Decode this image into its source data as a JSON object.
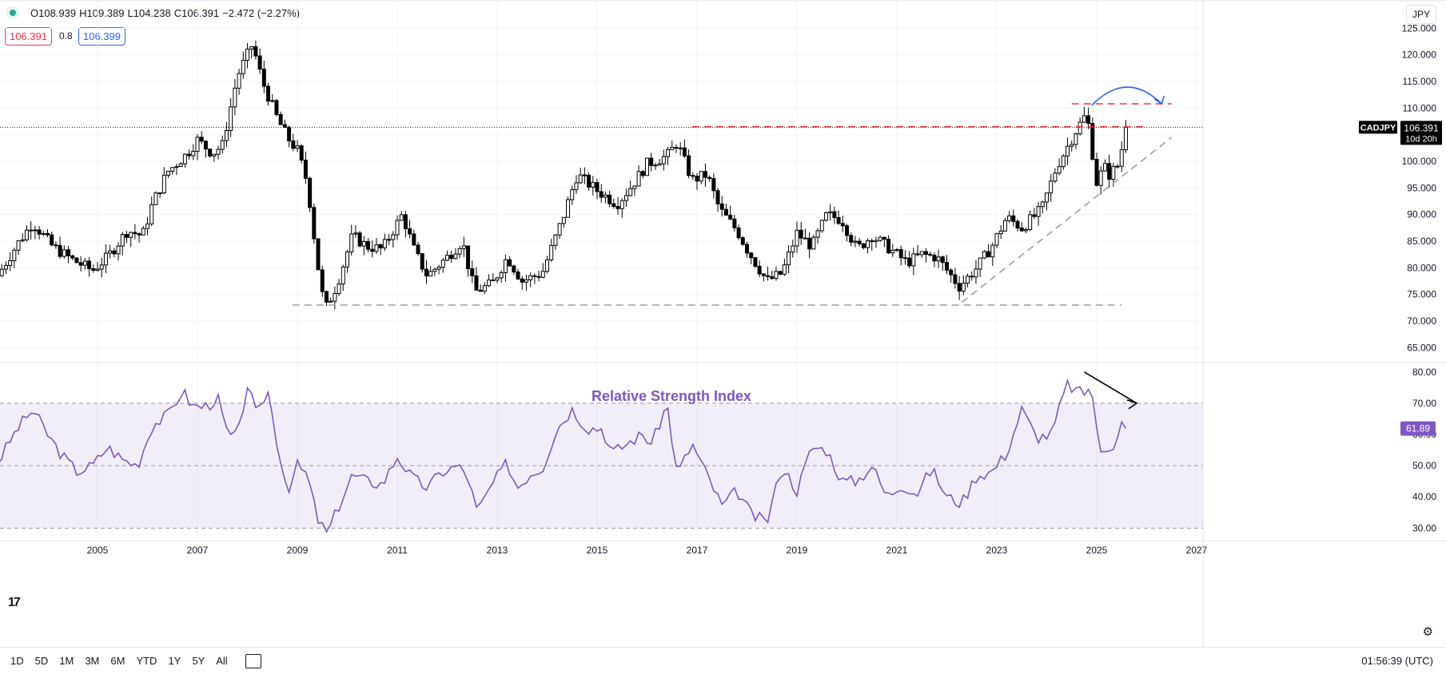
{
  "header": {
    "open": "O108.939",
    "high": "H109.389",
    "low": "L104.238",
    "close": "C106.391",
    "change": "−2.472 (−2.27%)",
    "bid": "106.391",
    "spread": "0.8",
    "ask": "106.399",
    "currency": "JPY"
  },
  "footer": {
    "timeframes": [
      "1D",
      "5D",
      "1M",
      "3M",
      "6M",
      "YTD",
      "1Y",
      "5Y",
      "All"
    ],
    "clock": "01:56:39 (UTC)"
  },
  "chart_data": [
    {
      "type": "candlestick",
      "symbol": "CADJPY",
      "last_price": "106.391",
      "countdown": "10d 20h",
      "x_ticks": [
        "2005",
        "2007",
        "2009",
        "2011",
        "2013",
        "2015",
        "2017",
        "2019",
        "2021",
        "2023",
        "2025",
        "2027"
      ],
      "y_ticks": [
        "125.000",
        "120.000",
        "115.000",
        "110.000",
        "105.000",
        "100.000",
        "95.000",
        "90.000",
        "85.000",
        "80.000",
        "75.000",
        "70.000",
        "65.000"
      ],
      "ylim": [
        62.5,
        128.5
      ],
      "anchors": [
        [
          2003.0,
          78.5
        ],
        [
          2003.4,
          84.5
        ],
        [
          2003.7,
          88.5
        ],
        [
          2004.1,
          84.0
        ],
        [
          2004.5,
          81.5
        ],
        [
          2004.9,
          79.5
        ],
        [
          2005.2,
          82.0
        ],
        [
          2005.6,
          87.0
        ],
        [
          2005.9,
          86.0
        ],
        [
          2006.1,
          92.0
        ],
        [
          2006.4,
          98.0
        ],
        [
          2006.8,
          101.5
        ],
        [
          2007.0,
          104.0
        ],
        [
          2007.3,
          101.5
        ],
        [
          2007.5,
          103.0
        ],
        [
          2007.8,
          116.0
        ],
        [
          2008.1,
          122.0
        ],
        [
          2008.3,
          115.0
        ],
        [
          2008.6,
          108.0
        ],
        [
          2008.8,
          104.5
        ],
        [
          2009.0,
          102.0
        ],
        [
          2009.2,
          96.0
        ],
        [
          2009.4,
          81.0
        ],
        [
          2009.55,
          72.0
        ],
        [
          2009.8,
          77.0
        ],
        [
          2010.1,
          86.0
        ],
        [
          2010.4,
          84.0
        ],
        [
          2010.7,
          83.5
        ],
        [
          2011.1,
          90.0
        ],
        [
          2011.35,
          83.0
        ],
        [
          2011.6,
          78.5
        ],
        [
          2012.0,
          82.0
        ],
        [
          2012.3,
          85.0
        ],
        [
          2012.55,
          75.5
        ],
        [
          2012.9,
          77.0
        ],
        [
          2013.2,
          82.0
        ],
        [
          2013.5,
          77.5
        ],
        [
          2013.9,
          79.0
        ],
        [
          2014.3,
          89.0
        ],
        [
          2014.6,
          97.5
        ],
        [
          2015.0,
          94.5
        ],
        [
          2015.4,
          92.0
        ],
        [
          2015.7,
          95.5
        ],
        [
          2016.0,
          99.5
        ],
        [
          2016.4,
          101.0
        ],
        [
          2016.6,
          103.5
        ],
        [
          2016.9,
          96.5
        ],
        [
          2017.2,
          97.5
        ],
        [
          2017.45,
          91.0
        ],
        [
          2017.8,
          87.0
        ],
        [
          2018.0,
          83.5
        ],
        [
          2018.4,
          77.5
        ],
        [
          2018.7,
          79.0
        ],
        [
          2019.0,
          86.5
        ],
        [
          2019.3,
          84.0
        ],
        [
          2019.6,
          90.0
        ],
        [
          2019.9,
          89.0
        ],
        [
          2020.2,
          83.5
        ],
        [
          2020.5,
          86.0
        ],
        [
          2020.8,
          84.0
        ],
        [
          2021.2,
          81.0
        ],
        [
          2021.5,
          82.5
        ],
        [
          2021.8,
          82.0
        ],
        [
          2022.25,
          76.5
        ],
        [
          2022.6,
          80.0
        ],
        [
          2022.9,
          84.0
        ],
        [
          2023.2,
          89.5
        ],
        [
          2023.5,
          87.5
        ],
        [
          2023.9,
          91.0
        ],
        [
          2024.2,
          99.0
        ],
        [
          2024.6,
          106.0
        ],
        [
          2024.8,
          109.0
        ],
        [
          2025.0,
          96.0
        ],
        [
          2025.15,
          99.0
        ],
        [
          2025.25,
          97.5
        ],
        [
          2025.45,
          99.5
        ],
        [
          2025.6,
          108.0
        ],
        [
          2025.66,
          106.4
        ]
      ],
      "lines": [
        {
          "name": "support",
          "style": "dashed",
          "color": "#9e9e9e",
          "points": [
            [
              2008.9,
              73.0
            ],
            [
              2025.5,
              73.0
            ]
          ]
        },
        {
          "name": "resistance",
          "style": "dashed",
          "color": "#f23645",
          "points": [
            [
              2016.9,
              106.5
            ],
            [
              2026.0,
              106.5
            ]
          ]
        },
        {
          "name": "resistance-upper",
          "style": "dashed",
          "color": "#f23645",
          "points": [
            [
              2024.5,
              110.8
            ],
            [
              2026.5,
              110.8
            ]
          ]
        },
        {
          "name": "trendline",
          "style": "dashed",
          "color": "#9e9e9e",
          "points": [
            [
              2022.3,
              73.5
            ],
            [
              2026.5,
              104.5
            ]
          ]
        }
      ],
      "arrow": {
        "color": "#2962ff",
        "from": [
          2024.9,
          110.5
        ],
        "to": [
          2026.3,
          110.8
        ],
        "peak": [
          2025.6,
          114.5
        ]
      }
    },
    {
      "type": "line",
      "title": "Relative Strength Index",
      "last_value": "61.89",
      "color": "#7e57c2",
      "band": [
        30,
        70
      ],
      "midline": 50,
      "y_ticks": [
        "80.00",
        "70.00",
        "60.00",
        "50.00",
        "40.00",
        "30.00"
      ],
      "ylim": [
        26.5,
        82.5
      ],
      "anchors": [
        [
          2003.0,
          51
        ],
        [
          2003.4,
          62
        ],
        [
          2003.7,
          68
        ],
        [
          2004.0,
          60
        ],
        [
          2004.3,
          53
        ],
        [
          2004.6,
          48
        ],
        [
          2004.9,
          50
        ],
        [
          2005.2,
          56
        ],
        [
          2005.5,
          52
        ],
        [
          2005.8,
          50
        ],
        [
          2006.1,
          63
        ],
        [
          2006.4,
          66
        ],
        [
          2006.7,
          74
        ],
        [
          2006.9,
          69
        ],
        [
          2007.2,
          69
        ],
        [
          2007.4,
          72
        ],
        [
          2007.6,
          60
        ],
        [
          2007.8,
          59
        ],
        [
          2008.0,
          76
        ],
        [
          2008.2,
          65
        ],
        [
          2008.4,
          75
        ],
        [
          2008.6,
          57
        ],
        [
          2008.8,
          42
        ],
        [
          2009.0,
          50
        ],
        [
          2009.2,
          47
        ],
        [
          2009.4,
          33
        ],
        [
          2009.6,
          28
        ],
        [
          2009.8,
          36
        ],
        [
          2010.1,
          47
        ],
        [
          2010.4,
          45
        ],
        [
          2010.7,
          44
        ],
        [
          2011.0,
          53
        ],
        [
          2011.3,
          46
        ],
        [
          2011.6,
          43
        ],
        [
          2011.9,
          48
        ],
        [
          2012.2,
          50
        ],
        [
          2012.4,
          47
        ],
        [
          2012.6,
          35
        ],
        [
          2012.9,
          44
        ],
        [
          2013.2,
          51
        ],
        [
          2013.4,
          43
        ],
        [
          2013.7,
          48
        ],
        [
          2013.9,
          49
        ],
        [
          2014.2,
          62
        ],
        [
          2014.5,
          68
        ],
        [
          2014.8,
          62
        ],
        [
          2015.1,
          62
        ],
        [
          2015.3,
          54
        ],
        [
          2015.6,
          57
        ],
        [
          2015.9,
          60
        ],
        [
          2016.1,
          57
        ],
        [
          2016.4,
          70
        ],
        [
          2016.6,
          47
        ],
        [
          2016.9,
          57
        ],
        [
          2017.2,
          47
        ],
        [
          2017.5,
          37
        ],
        [
          2017.8,
          42
        ],
        [
          2018.1,
          34
        ],
        [
          2018.4,
          32
        ],
        [
          2018.7,
          50
        ],
        [
          2019.0,
          42
        ],
        [
          2019.3,
          56
        ],
        [
          2019.6,
          55
        ],
        [
          2019.9,
          45
        ],
        [
          2020.2,
          45
        ],
        [
          2020.5,
          50
        ],
        [
          2020.8,
          40
        ],
        [
          2021.1,
          44
        ],
        [
          2021.4,
          41
        ],
        [
          2021.7,
          49
        ],
        [
          2022.0,
          40
        ],
        [
          2022.3,
          38
        ],
        [
          2022.6,
          47
        ],
        [
          2022.9,
          48
        ],
        [
          2023.2,
          54
        ],
        [
          2023.5,
          68
        ],
        [
          2023.8,
          59
        ],
        [
          2024.1,
          60
        ],
        [
          2024.4,
          76
        ],
        [
          2024.7,
          73
        ],
        [
          2024.9,
          75
        ],
        [
          2025.05,
          54
        ],
        [
          2025.2,
          56
        ],
        [
          2025.35,
          57
        ],
        [
          2025.55,
          66
        ],
        [
          2025.66,
          61.89
        ]
      ],
      "arrow": {
        "color": "#000000",
        "from": [
          2024.75,
          80
        ],
        "to": [
          2025.8,
          70
        ]
      }
    }
  ]
}
